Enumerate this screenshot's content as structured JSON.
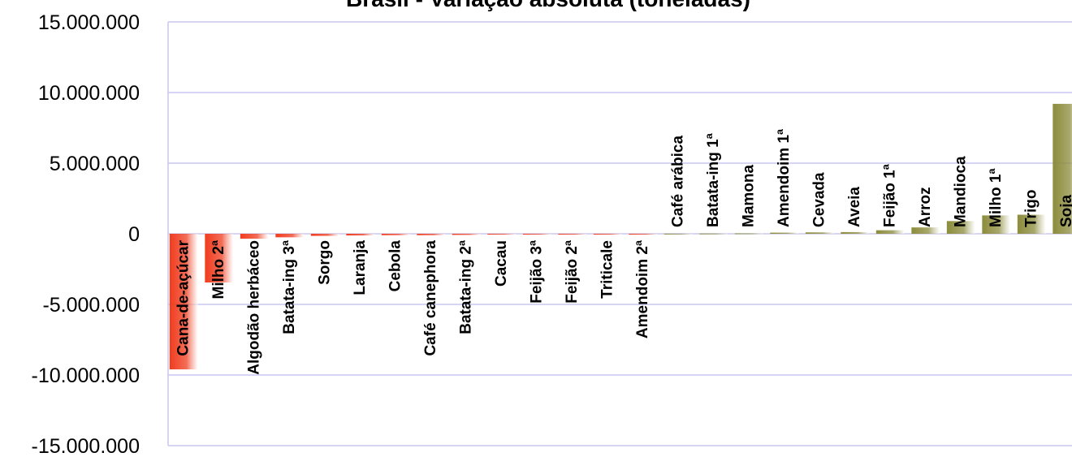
{
  "chart_data": {
    "type": "bar",
    "title": "Brasil - Variação absoluta (toneladas)",
    "categories": [
      "Cana-de-açúcar",
      "Milho 2ª",
      "Algodão herbáceo",
      "Batata-ing 3ª",
      "Sorgo",
      "Laranja",
      "Cebola",
      "Café canephora",
      "Batata-ing 2ª",
      "Cacau",
      "Feijão 3ª",
      "Feijão 2ª",
      "Triticale",
      "Amendoim 2ª",
      "Café arábica",
      "Batata-ing 1ª",
      "Mamona",
      "Amendoim 1ª",
      "Cevada",
      "Aveia",
      "Feijão 1ª",
      "Arroz",
      "Mandioca",
      "Milho 1ª",
      "Trigo",
      "Soja"
    ],
    "values": [
      -9600000,
      -3450000,
      -350000,
      -250000,
      -150000,
      -120000,
      -100000,
      -100000,
      -80000,
      -30000,
      -20000,
      -15000,
      -10000,
      -5000,
      10000,
      20000,
      30000,
      80000,
      100000,
      120000,
      250000,
      450000,
      900000,
      1300000,
      1350000,
      9200000
    ],
    "negative_color": "#f03c1e",
    "positive_color": "#8c8c3c",
    "ylim": [
      -15000000,
      15000000
    ],
    "yticks": [
      {
        "value": -15000000,
        "label": "-15.000.000"
      },
      {
        "value": -10000000,
        "label": "-10.000.000"
      },
      {
        "value": -5000000,
        "label": "-5.000.000"
      },
      0,
      {
        "value": 5000000,
        "label": "5.000.000"
      },
      {
        "value": 10000000,
        "label": "10.000.000"
      },
      {
        "value": 15000000,
        "label": "15.000.000"
      }
    ],
    "grid": true
  }
}
